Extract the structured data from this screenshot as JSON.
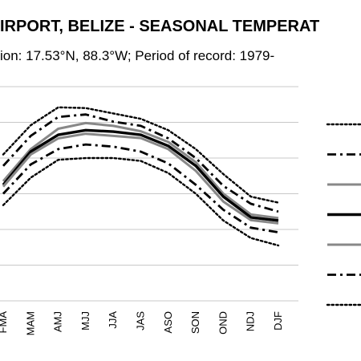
{
  "chart_data": {
    "type": "line",
    "title": "IRPORT, BELIZE - SEASONAL TEMPERAT",
    "subtitle": "ion: 17.53°N, 88.3°W; Period of record: 1979-",
    "categories": [
      "FMA",
      "MAM",
      "AMJ",
      "MJJ",
      "JJA",
      "JAS",
      "ASO",
      "SON",
      "OND",
      "NDJ",
      "DJF"
    ],
    "ylim": [
      0,
      6
    ],
    "grid": true,
    "legend_position": "right",
    "series": [
      {
        "style": "dotted",
        "color": "#000000",
        "values": [
          4.1,
          4.92,
          5.42,
          5.4,
          5.25,
          5.1,
          4.78,
          4.25,
          3.55,
          2.92,
          2.75
        ]
      },
      {
        "style": "dashdot",
        "color": "#000000",
        "values": [
          3.78,
          4.62,
          5.15,
          5.22,
          5.02,
          4.9,
          4.55,
          4.0,
          3.22,
          2.72,
          2.5
        ]
      },
      {
        "style": "solid-thin",
        "color": "#888888",
        "values": [
          3.35,
          4.25,
          4.82,
          4.98,
          4.9,
          4.75,
          4.45,
          3.88,
          3.0,
          2.42,
          2.32
        ]
      },
      {
        "style": "solid-thick",
        "color": "#000000",
        "values": [
          3.25,
          4.18,
          4.65,
          4.78,
          4.74,
          4.65,
          4.34,
          3.78,
          2.92,
          2.34,
          2.25
        ]
      },
      {
        "style": "solid-thin",
        "color": "#888888",
        "values": [
          3.2,
          4.1,
          4.55,
          4.68,
          4.62,
          4.56,
          4.25,
          3.64,
          2.78,
          2.26,
          2.17
        ]
      },
      {
        "style": "dashdot",
        "color": "#000000",
        "values": [
          3.0,
          3.82,
          4.25,
          4.38,
          4.32,
          4.18,
          3.85,
          3.25,
          2.55,
          2.05,
          1.92
        ]
      },
      {
        "style": "dotted",
        "color": "#000000",
        "values": [
          2.68,
          3.45,
          3.95,
          4.0,
          4.0,
          3.92,
          3.58,
          3.0,
          2.25,
          1.76,
          1.55
        ]
      }
    ]
  }
}
